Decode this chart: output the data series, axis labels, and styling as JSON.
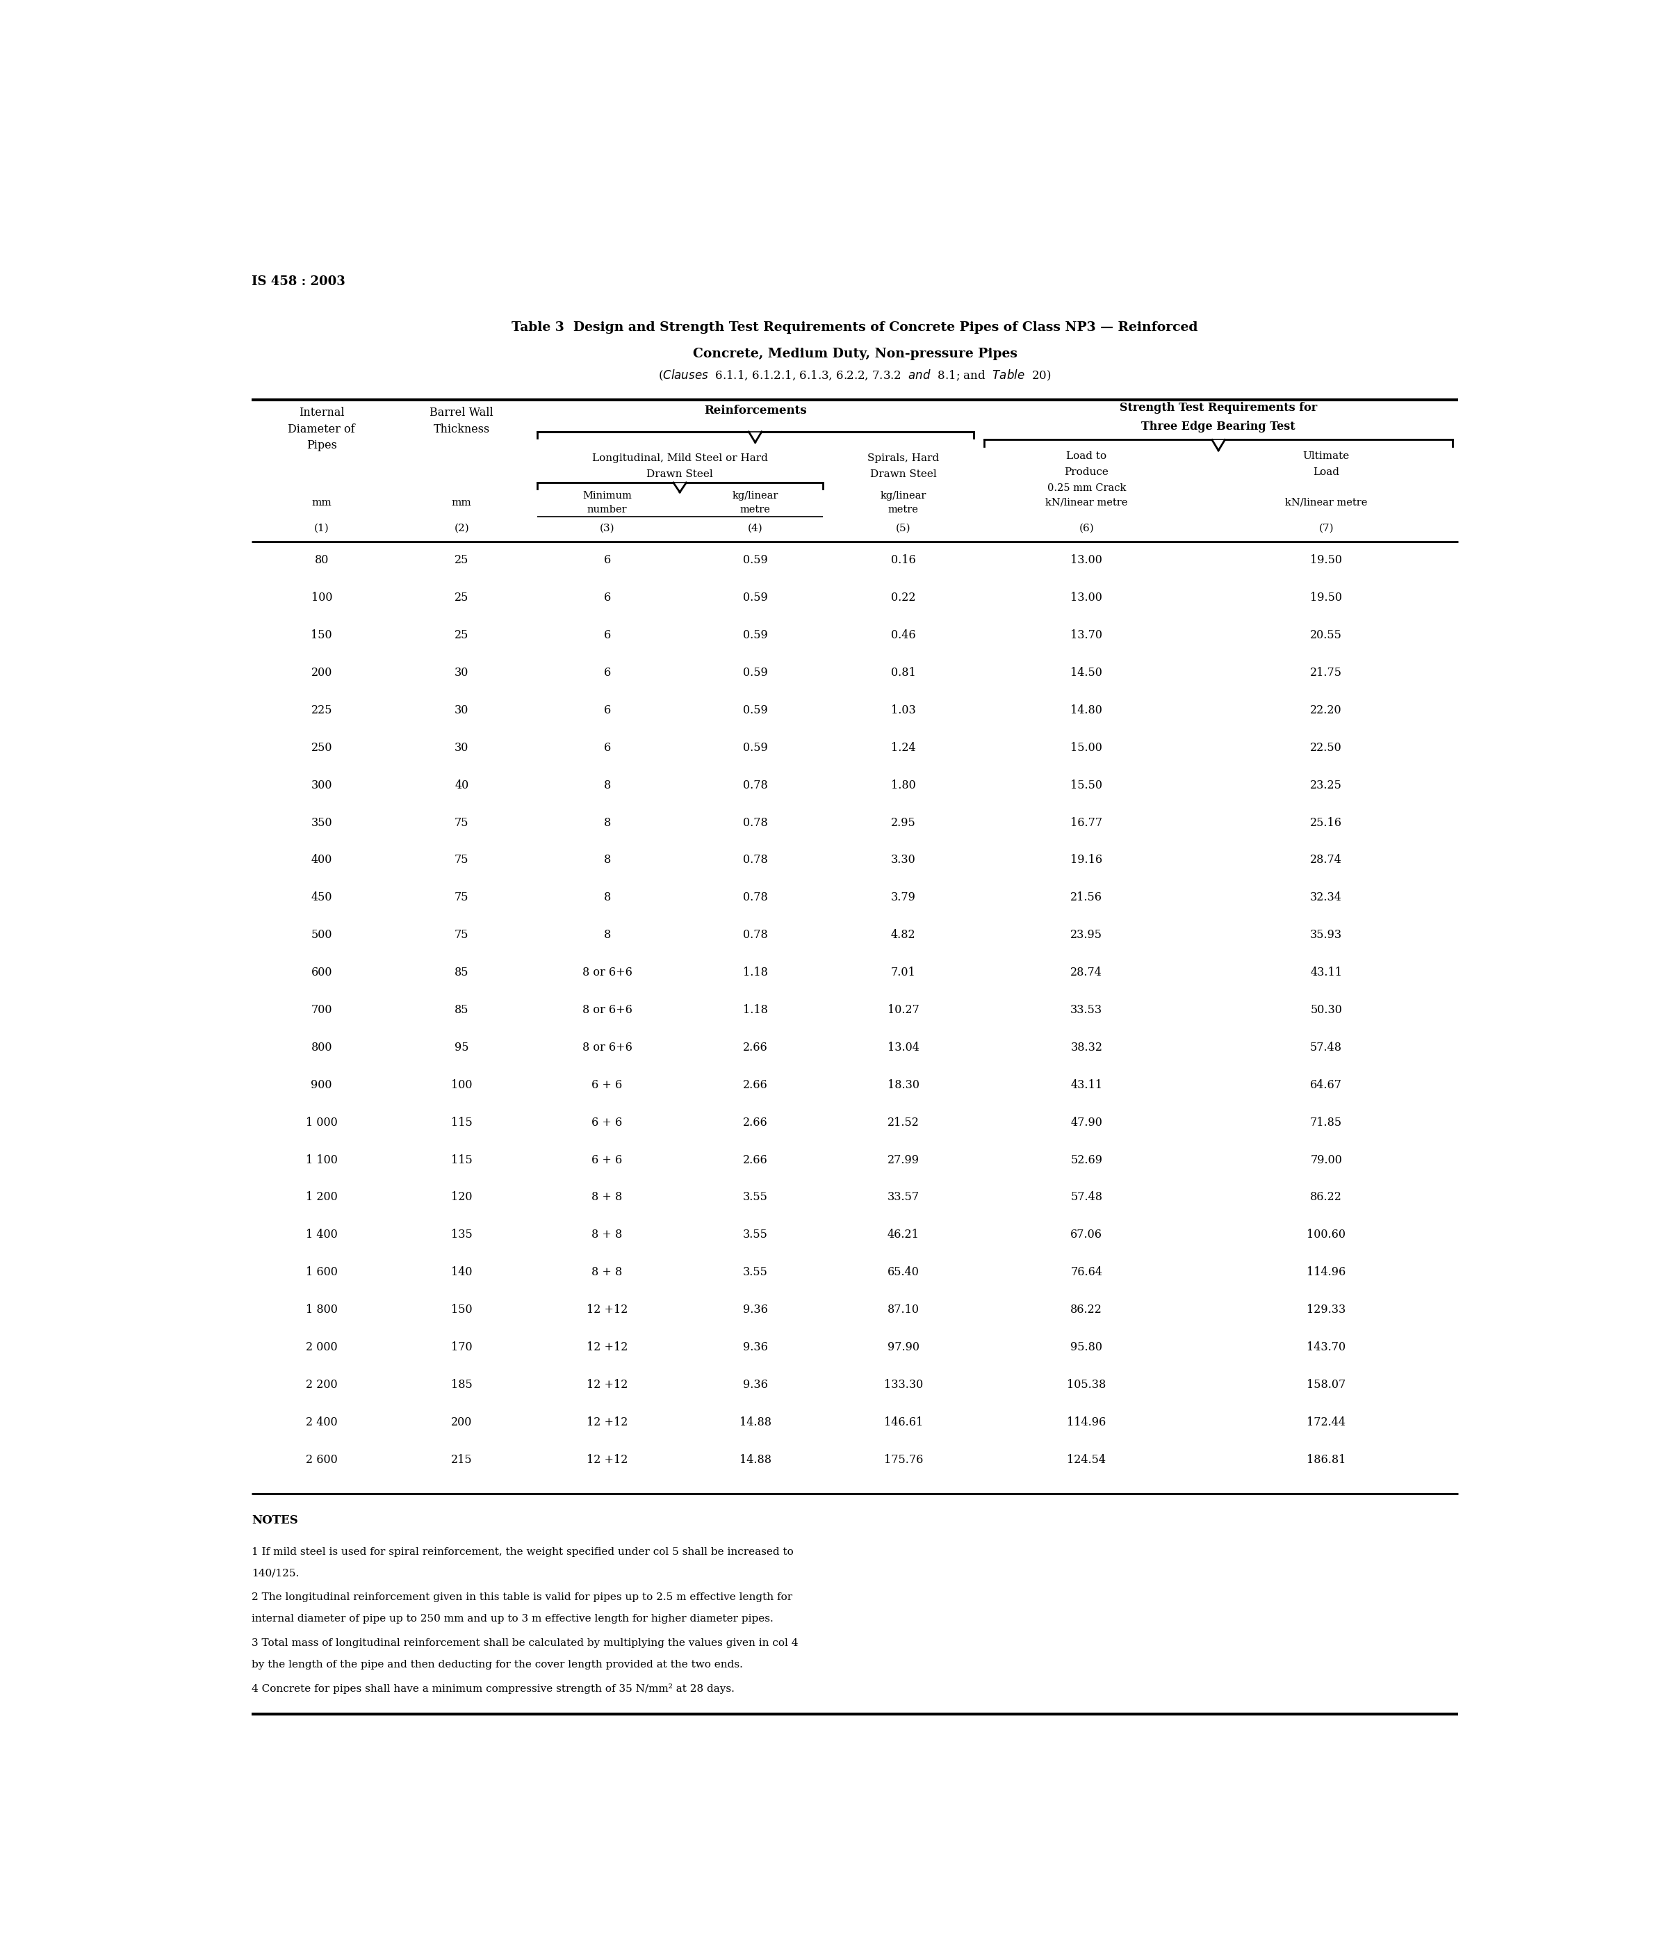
{
  "page_label": "IS 458 : 2003",
  "title_line1": "Table 3  Design and Strength Test Requirements of Concrete Pipes of Class NP3 — Reinforced",
  "title_line2": "Concrete, Medium Duty, Non-pressure Pipes",
  "title_line3_normal1": "(",
  "title_line3_italic1": "Clauses",
  "title_line3_normal2": "  6.1.1, 6.1.2.1, 6.1.3, 6.2.2, 7.3.2  ",
  "title_line3_italic2": "and",
  "title_line3_normal3": "  8.1; and  ",
  "title_line3_italic3": "Table",
  "title_line3_normal4": "  20)",
  "col_numbers": [
    "(1)",
    "(2)",
    "(3)",
    "(4)",
    "(5)",
    "(6)",
    "(7)"
  ],
  "table_data": [
    [
      "80",
      "25",
      "6",
      "0.59",
      "0.16",
      "13.00",
      "19.50"
    ],
    [
      "100",
      "25",
      "6",
      "0.59",
      "0.22",
      "13.00",
      "19.50"
    ],
    [
      "150",
      "25",
      "6",
      "0.59",
      "0.46",
      "13.70",
      "20.55"
    ],
    [
      "200",
      "30",
      "6",
      "0.59",
      "0.81",
      "14.50",
      "21.75"
    ],
    [
      "225",
      "30",
      "6",
      "0.59",
      "1.03",
      "14.80",
      "22.20"
    ],
    [
      "250",
      "30",
      "6",
      "0.59",
      "1.24",
      "15.00",
      "22.50"
    ],
    [
      "300",
      "40",
      "8",
      "0.78",
      "1.80",
      "15.50",
      "23.25"
    ],
    [
      "350",
      "75",
      "8",
      "0.78",
      "2.95",
      "16.77",
      "25.16"
    ],
    [
      "400",
      "75",
      "8",
      "0.78",
      "3.30",
      "19.16",
      "28.74"
    ],
    [
      "450",
      "75",
      "8",
      "0.78",
      "3.79",
      "21.56",
      "32.34"
    ],
    [
      "500",
      "75",
      "8",
      "0.78",
      "4.82",
      "23.95",
      "35.93"
    ],
    [
      "600",
      "85",
      "8 or 6+6",
      "1.18",
      "7.01",
      "28.74",
      "43.11"
    ],
    [
      "700",
      "85",
      "8 or 6+6",
      "1.18",
      "10.27",
      "33.53",
      "50.30"
    ],
    [
      "800",
      "95",
      "8 or 6+6",
      "2.66",
      "13.04",
      "38.32",
      "57.48"
    ],
    [
      "900",
      "100",
      "6 + 6",
      "2.66",
      "18.30",
      "43.11",
      "64.67"
    ],
    [
      "1 000",
      "115",
      "6 + 6",
      "2.66",
      "21.52",
      "47.90",
      "71.85"
    ],
    [
      "1 100",
      "115",
      "6 + 6",
      "2.66",
      "27.99",
      "52.69",
      "79.00"
    ],
    [
      "1 200",
      "120",
      "8 + 8",
      "3.55",
      "33.57",
      "57.48",
      "86.22"
    ],
    [
      "1 400",
      "135",
      "8 + 8",
      "3.55",
      "46.21",
      "67.06",
      "100.60"
    ],
    [
      "1 600",
      "140",
      "8 + 8",
      "3.55",
      "65.40",
      "76.64",
      "114.96"
    ],
    [
      "1 800",
      "150",
      "12 +12",
      "9.36",
      "87.10",
      "86.22",
      "129.33"
    ],
    [
      "2 000",
      "170",
      "12 +12",
      "9.36",
      "97.90",
      "95.80",
      "143.70"
    ],
    [
      "2 200",
      "185",
      "12 +12",
      "9.36",
      "133.30",
      "105.38",
      "158.07"
    ],
    [
      "2 400",
      "200",
      "12 +12",
      "14.88",
      "146.61",
      "114.96",
      "172.44"
    ],
    [
      "2 600",
      "215",
      "12 +12",
      "14.88",
      "175.76",
      "124.54",
      "186.81"
    ]
  ],
  "notes": [
    "NOTES",
    "1  If mild steel is used for spiral reinforcement, the weight specified under col 5 shall be increased to 140/125.",
    "2  The longitudinal reinforcement given in this table is valid for pipes up to 2.5 m effective length for internal diameter of pipe up to 250 mm and up to 3 m effective length for higher diameter pipes.",
    "3  Total mass of longitudinal reinforcement shall be calculated by multiplying the values given in col 4 by the length of the pipe and then deducting for the cover length provided at the two ends.",
    "4  Concrete for pipes shall have a minimum compressive strength of 35  N/mm² at 28 days."
  ],
  "bg_color": "#ffffff",
  "text_color": "#000000",
  "line_color": "#000000"
}
